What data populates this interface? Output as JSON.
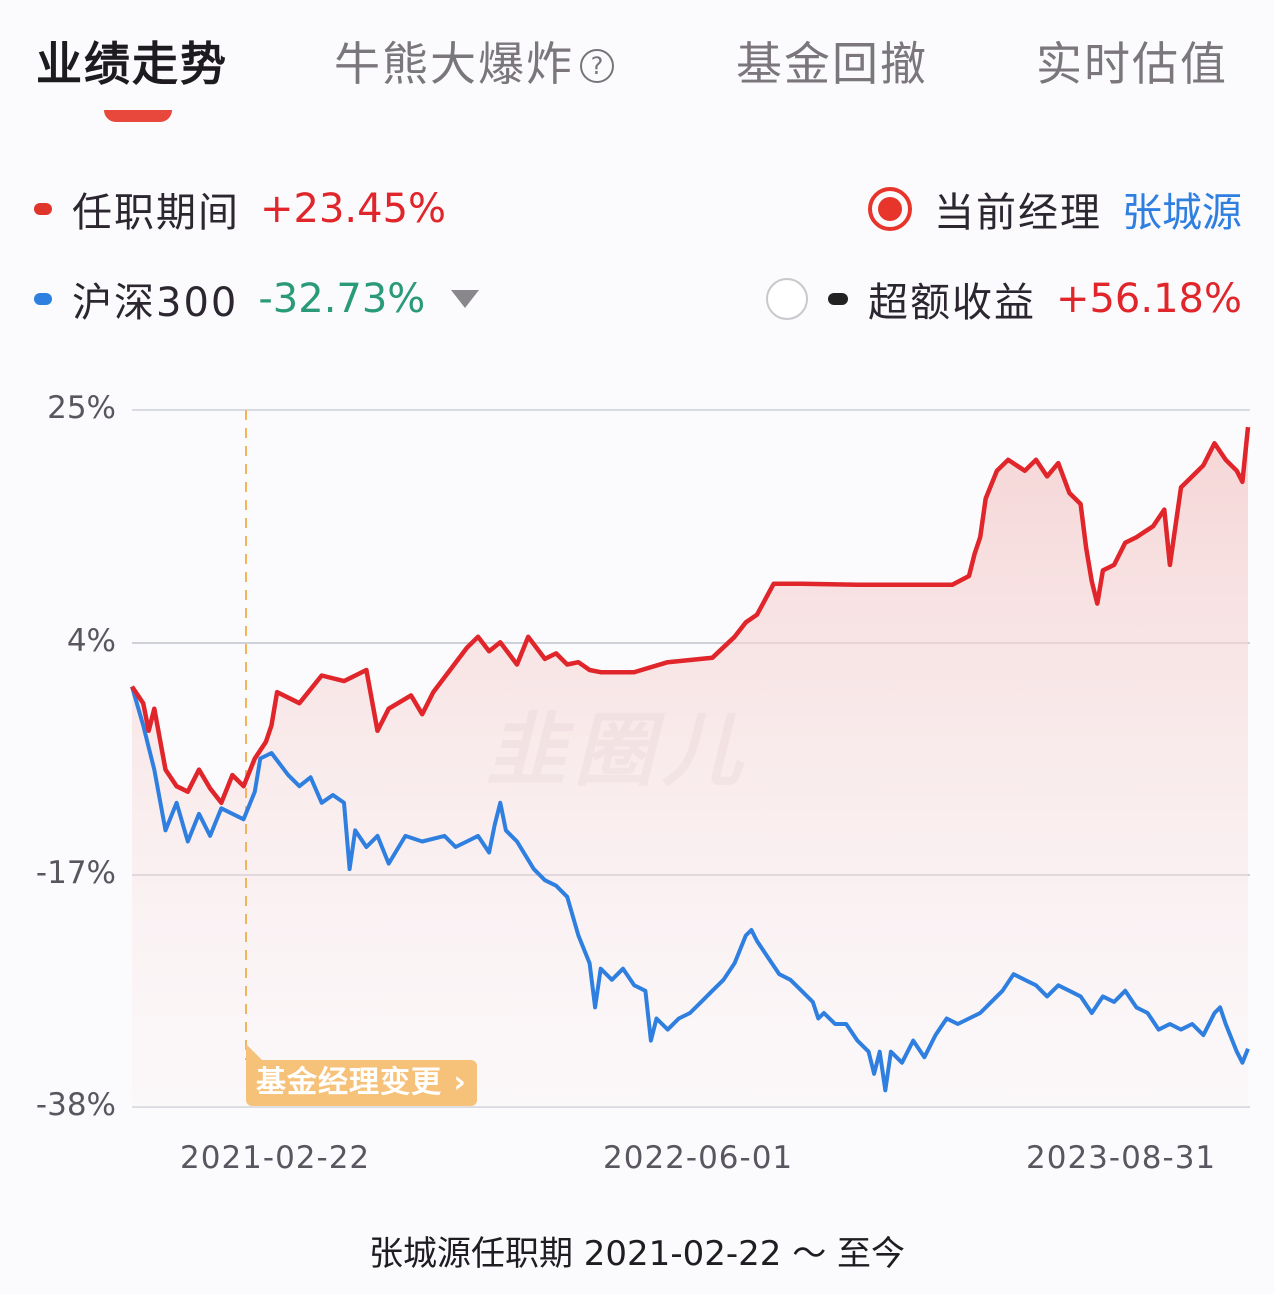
{
  "tabs": [
    {
      "label": "业绩走势",
      "active": true
    },
    {
      "label": "牛熊大爆炸",
      "active": false,
      "help_icon": "?"
    },
    {
      "label": "基金回撤",
      "active": false
    },
    {
      "label": "实时估值",
      "active": false
    }
  ],
  "legend": {
    "tenure": {
      "label": "任职期间",
      "value": "+23.45%",
      "color": "#e0252b"
    },
    "benchmark": {
      "label": "沪深300",
      "value": "-32.73%",
      "color": "#2f7fe0"
    },
    "current_manager": {
      "label": "当前经理",
      "name": "张城源"
    },
    "excess": {
      "label": "超额收益",
      "value": "+56.18%"
    }
  },
  "annotation": {
    "label": "基金经理变更",
    "chevron": "›"
  },
  "watermark": "韭圈儿",
  "caption": "张城源任职期 2021-02-22 ～ 至今",
  "chart_data": {
    "type": "line",
    "title": "业绩走势",
    "xlabel": "",
    "ylabel": "",
    "ylim": [
      -38,
      25
    ],
    "yticks": [
      "25%",
      "4%",
      "-17%",
      "-38%"
    ],
    "xticks": [
      "2021-02-22",
      "2022-06-01",
      "2023-08-31"
    ],
    "grid": true,
    "legend_position": "top",
    "vline": {
      "date": "2021-02-22",
      "label": "基金经理变更"
    },
    "series": [
      {
        "name": "任职期间",
        "color": "#e0252b",
        "final": 23.45,
        "points": [
          [
            0,
            0.0
          ],
          [
            0.01,
            -1.5
          ],
          [
            0.015,
            -4.0
          ],
          [
            0.02,
            -2.0
          ],
          [
            0.03,
            -7.5
          ],
          [
            0.04,
            -9.0
          ],
          [
            0.05,
            -9.5
          ],
          [
            0.06,
            -7.5
          ],
          [
            0.07,
            -9.2
          ],
          [
            0.08,
            -10.5
          ],
          [
            0.09,
            -8.0
          ],
          [
            0.1,
            -9.0
          ],
          [
            0.11,
            -6.5
          ],
          [
            0.12,
            -5.0
          ],
          [
            0.125,
            -3.5
          ],
          [
            0.13,
            -0.5
          ],
          [
            0.15,
            -1.5
          ],
          [
            0.17,
            1.0
          ],
          [
            0.19,
            0.5
          ],
          [
            0.21,
            1.5
          ],
          [
            0.22,
            -4.0
          ],
          [
            0.23,
            -2.0
          ],
          [
            0.25,
            -0.8
          ],
          [
            0.26,
            -2.5
          ],
          [
            0.27,
            -0.5
          ],
          [
            0.285,
            1.5
          ],
          [
            0.3,
            3.5
          ],
          [
            0.31,
            4.5
          ],
          [
            0.32,
            3.2
          ],
          [
            0.33,
            4.0
          ],
          [
            0.345,
            2.0
          ],
          [
            0.355,
            4.5
          ],
          [
            0.37,
            2.5
          ],
          [
            0.38,
            3.0
          ],
          [
            0.39,
            2.0
          ],
          [
            0.4,
            2.2
          ],
          [
            0.41,
            1.5
          ],
          [
            0.42,
            1.3
          ],
          [
            0.45,
            1.3
          ],
          [
            0.48,
            2.2
          ],
          [
            0.51,
            2.5
          ],
          [
            0.52,
            2.6
          ],
          [
            0.54,
            4.5
          ],
          [
            0.55,
            5.8
          ],
          [
            0.56,
            6.5
          ],
          [
            0.575,
            9.3
          ],
          [
            0.6,
            9.3
          ],
          [
            0.65,
            9.2
          ],
          [
            0.7,
            9.2
          ],
          [
            0.735,
            9.2
          ],
          [
            0.75,
            10.0
          ],
          [
            0.755,
            12.0
          ],
          [
            0.76,
            13.5
          ],
          [
            0.765,
            17.0
          ],
          [
            0.775,
            19.5
          ],
          [
            0.785,
            20.5
          ],
          [
            0.8,
            19.5
          ],
          [
            0.81,
            20.5
          ],
          [
            0.82,
            19.0
          ],
          [
            0.83,
            20.2
          ],
          [
            0.84,
            17.5
          ],
          [
            0.85,
            16.5
          ],
          [
            0.855,
            12.5
          ],
          [
            0.86,
            9.5
          ],
          [
            0.865,
            7.5
          ],
          [
            0.87,
            10.5
          ],
          [
            0.88,
            11.0
          ],
          [
            0.89,
            13.0
          ],
          [
            0.9,
            13.5
          ],
          [
            0.915,
            14.5
          ],
          [
            0.925,
            16.0
          ],
          [
            0.93,
            11.0
          ],
          [
            0.94,
            18.0
          ],
          [
            0.95,
            19.0
          ],
          [
            0.96,
            20.0
          ],
          [
            0.97,
            22.0
          ],
          [
            0.98,
            20.5
          ],
          [
            0.99,
            19.5
          ],
          [
            0.995,
            18.5
          ],
          [
            1.0,
            23.45
          ]
        ]
      },
      {
        "name": "沪深300",
        "color": "#2f7fe0",
        "final": -32.73,
        "points": [
          [
            0,
            0.0
          ],
          [
            0.01,
            -3.5
          ],
          [
            0.015,
            -5.5
          ],
          [
            0.02,
            -7.5
          ],
          [
            0.03,
            -13.0
          ],
          [
            0.04,
            -10.5
          ],
          [
            0.05,
            -14.0
          ],
          [
            0.06,
            -11.5
          ],
          [
            0.07,
            -13.5
          ],
          [
            0.08,
            -11.0
          ],
          [
            0.09,
            -11.5
          ],
          [
            0.1,
            -12.0
          ],
          [
            0.11,
            -9.5
          ],
          [
            0.115,
            -6.5
          ],
          [
            0.125,
            -6.0
          ],
          [
            0.14,
            -8.0
          ],
          [
            0.15,
            -9.0
          ],
          [
            0.16,
            -8.2
          ],
          [
            0.17,
            -10.5
          ],
          [
            0.18,
            -9.8
          ],
          [
            0.19,
            -10.5
          ],
          [
            0.195,
            -16.5
          ],
          [
            0.2,
            -13.0
          ],
          [
            0.21,
            -14.5
          ],
          [
            0.22,
            -13.5
          ],
          [
            0.23,
            -16.0
          ],
          [
            0.245,
            -13.5
          ],
          [
            0.26,
            -14.0
          ],
          [
            0.28,
            -13.5
          ],
          [
            0.29,
            -14.5
          ],
          [
            0.3,
            -14.0
          ],
          [
            0.31,
            -13.5
          ],
          [
            0.32,
            -15.0
          ],
          [
            0.325,
            -12.5
          ],
          [
            0.33,
            -10.5
          ],
          [
            0.335,
            -13.0
          ],
          [
            0.345,
            -14.0
          ],
          [
            0.36,
            -16.5
          ],
          [
            0.37,
            -17.5
          ],
          [
            0.38,
            -18.0
          ],
          [
            0.39,
            -19.0
          ],
          [
            0.4,
            -22.5
          ],
          [
            0.41,
            -25.0
          ],
          [
            0.415,
            -29.0
          ],
          [
            0.42,
            -25.5
          ],
          [
            0.43,
            -26.5
          ],
          [
            0.44,
            -25.5
          ],
          [
            0.45,
            -27.0
          ],
          [
            0.46,
            -27.5
          ],
          [
            0.465,
            -32.0
          ],
          [
            0.47,
            -30.0
          ],
          [
            0.48,
            -31.0
          ],
          [
            0.49,
            -30.0
          ],
          [
            0.5,
            -29.5
          ],
          [
            0.51,
            -28.5
          ],
          [
            0.52,
            -27.5
          ],
          [
            0.53,
            -26.5
          ],
          [
            0.54,
            -25.0
          ],
          [
            0.55,
            -22.5
          ],
          [
            0.555,
            -22.0
          ],
          [
            0.56,
            -23.0
          ],
          [
            0.57,
            -24.5
          ],
          [
            0.58,
            -26.0
          ],
          [
            0.59,
            -26.5
          ],
          [
            0.6,
            -27.5
          ],
          [
            0.61,
            -28.5
          ],
          [
            0.615,
            -30.0
          ],
          [
            0.62,
            -29.5
          ],
          [
            0.63,
            -30.5
          ],
          [
            0.64,
            -30.5
          ],
          [
            0.65,
            -32.0
          ],
          [
            0.66,
            -33.0
          ],
          [
            0.665,
            -35.0
          ],
          [
            0.67,
            -33.0
          ],
          [
            0.675,
            -36.5
          ],
          [
            0.68,
            -33.0
          ],
          [
            0.69,
            -34.0
          ],
          [
            0.7,
            -32.0
          ],
          [
            0.71,
            -33.5
          ],
          [
            0.72,
            -31.5
          ],
          [
            0.73,
            -30.0
          ],
          [
            0.74,
            -30.5
          ],
          [
            0.75,
            -30.0
          ],
          [
            0.76,
            -29.5
          ],
          [
            0.77,
            -28.5
          ],
          [
            0.78,
            -27.5
          ],
          [
            0.79,
            -26.0
          ],
          [
            0.8,
            -26.5
          ],
          [
            0.81,
            -27.0
          ],
          [
            0.82,
            -28.0
          ],
          [
            0.83,
            -27.0
          ],
          [
            0.84,
            -27.5
          ],
          [
            0.85,
            -28.0
          ],
          [
            0.86,
            -29.5
          ],
          [
            0.87,
            -28.0
          ],
          [
            0.88,
            -28.5
          ],
          [
            0.89,
            -27.5
          ],
          [
            0.9,
            -29.0
          ],
          [
            0.91,
            -29.5
          ],
          [
            0.92,
            -31.0
          ],
          [
            0.93,
            -30.5
          ],
          [
            0.94,
            -31.0
          ],
          [
            0.95,
            -30.5
          ],
          [
            0.96,
            -31.5
          ],
          [
            0.97,
            -29.5
          ],
          [
            0.975,
            -29.0
          ],
          [
            0.98,
            -30.5
          ],
          [
            0.99,
            -33.0
          ],
          [
            0.995,
            -34.0
          ],
          [
            1.0,
            -32.73
          ]
        ]
      }
    ]
  }
}
